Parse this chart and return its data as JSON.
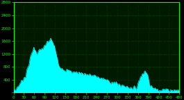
{
  "background_color": "#000000",
  "plot_bg_color": "#001a00",
  "grid_color": "#006400",
  "line_color": "#00FFFF",
  "fill_color": "#00FFFF",
  "x_min": 0,
  "x_max": 480,
  "y_min": 0,
  "y_max": 2800,
  "x_ticks": [
    0,
    30,
    60,
    90,
    120,
    150,
    180,
    210,
    240,
    270,
    300,
    330,
    360,
    390,
    420,
    450,
    480
  ],
  "y_ticks": [
    0,
    400,
    800,
    1200,
    1600,
    2000,
    2400,
    2800
  ],
  "tick_color": "#00FF00",
  "spine_color": "#00FF00",
  "figsize": [
    2.65,
    1.44
  ],
  "dpi": 100
}
